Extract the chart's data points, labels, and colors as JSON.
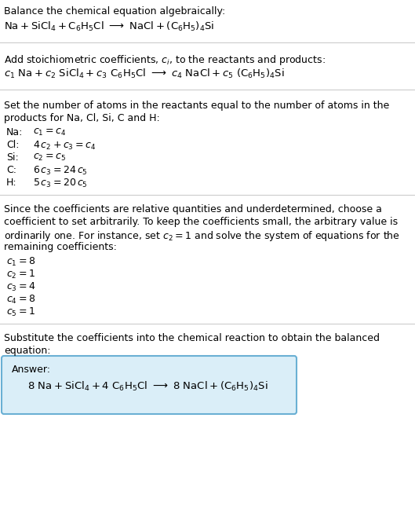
{
  "bg_color": "#ffffff",
  "answer_box_color": "#daeef8",
  "answer_box_edge": "#6ab0d4",
  "line_color": "#cccccc",
  "text_color": "#000000",
  "fs": 9.0,
  "fs_eq": 9.5,
  "section1_title": "Balance the chemical equation algebraically:",
  "section1_eq": "$\\mathrm{Na + SiCl_4 + C_6H_5Cl\\ \\longrightarrow\\ NaCl + (C_6H_5)_4Si}$",
  "section2_title": "Add stoichiometric coefficients, $c_i$, to the reactants and products:",
  "section2_eq": "$c_1\\ \\mathrm{Na} + c_2\\ \\mathrm{SiCl_4} + c_3\\ \\mathrm{C_6H_5Cl}\\ \\longrightarrow\\ c_4\\ \\mathrm{NaCl} + c_5\\ \\mathrm{(C_6H_5)_4Si}$",
  "section3_line1": "Set the number of atoms in the reactants equal to the number of atoms in the",
  "section3_line2": "products for Na, Cl, Si, C and H:",
  "atom_eqs": [
    [
      "Na:",
      "$c_1 = c_4$"
    ],
    [
      "Cl:",
      "$4\\,c_2 + c_3 = c_4$"
    ],
    [
      "Si:",
      "$c_2 = c_5$"
    ],
    [
      "C:",
      "$6\\,c_3 = 24\\,c_5$"
    ],
    [
      "H:",
      "$5\\,c_3 = 20\\,c_5$"
    ]
  ],
  "section4_para1": "Since the coefficients are relative quantities and underdetermined, choose a",
  "section4_para2": "coefficient to set arbitrarily. To keep the coefficients small, the arbitrary value is",
  "section4_para3": "ordinarily one. For instance, set $c_2 = 1$ and solve the system of equations for the",
  "section4_para4": "remaining coefficients:",
  "coeffs": [
    "$c_1 = 8$",
    "$c_2 = 1$",
    "$c_3 = 4$",
    "$c_4 = 8$",
    "$c_5 = 1$"
  ],
  "section5_line1": "Substitute the coefficients into the chemical reaction to obtain the balanced",
  "section5_line2": "equation:",
  "answer_label": "Answer:",
  "answer_eq": "$\\mathrm{8\\ Na + SiCl_4 + 4\\ C_6H_5Cl\\ \\longrightarrow\\ 8\\ NaCl + (C_6H_5)_4Si}$"
}
